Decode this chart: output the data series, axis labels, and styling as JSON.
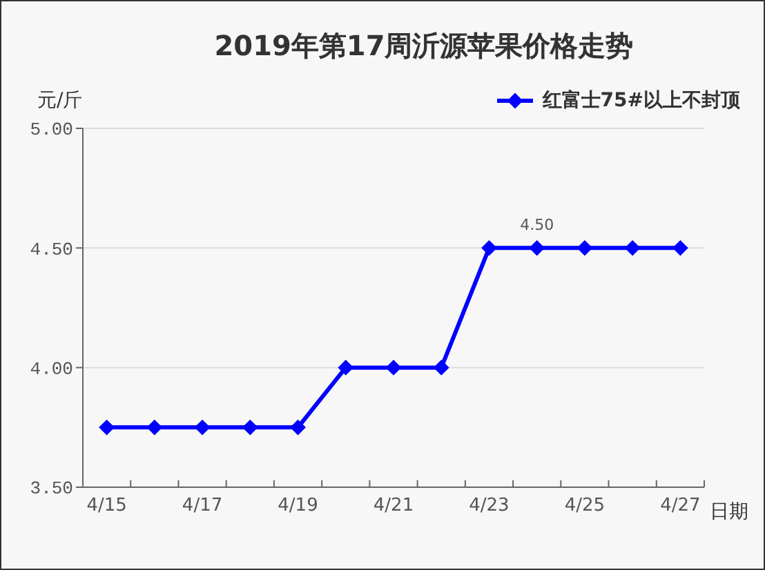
{
  "chart_data": {
    "type": "line",
    "title": "2019年第17周沂源苹果价格走势",
    "ylabel": "元/斤",
    "xlabel": "日期",
    "categories": [
      "4/15",
      null,
      "4/17",
      null,
      "4/19",
      null,
      "4/21",
      null,
      "4/23",
      null,
      "4/25",
      null,
      "4/27"
    ],
    "series": [
      {
        "name": "红富士75#以上不封顶",
        "color": "#0000ff",
        "values": [
          3.75,
          3.75,
          3.75,
          3.75,
          3.75,
          4,
          4,
          4,
          4.5,
          4.5,
          4.5,
          4.5,
          4.5
        ],
        "value_labels": [
          null,
          null,
          null,
          null,
          null,
          null,
          null,
          null,
          null,
          "4.50",
          null,
          null,
          null
        ]
      }
    ],
    "ylim": [
      3.5,
      5
    ],
    "yticks": [
      {
        "value": 3.5,
        "label": "3.50"
      },
      {
        "value": 4,
        "label": "4.00"
      },
      {
        "value": 4.5,
        "label": "4.50"
      },
      {
        "value": 5,
        "label": "5.00"
      }
    ],
    "grid": "y",
    "legend": "top right",
    "marker": "diamond",
    "line_style": "solid"
  }
}
